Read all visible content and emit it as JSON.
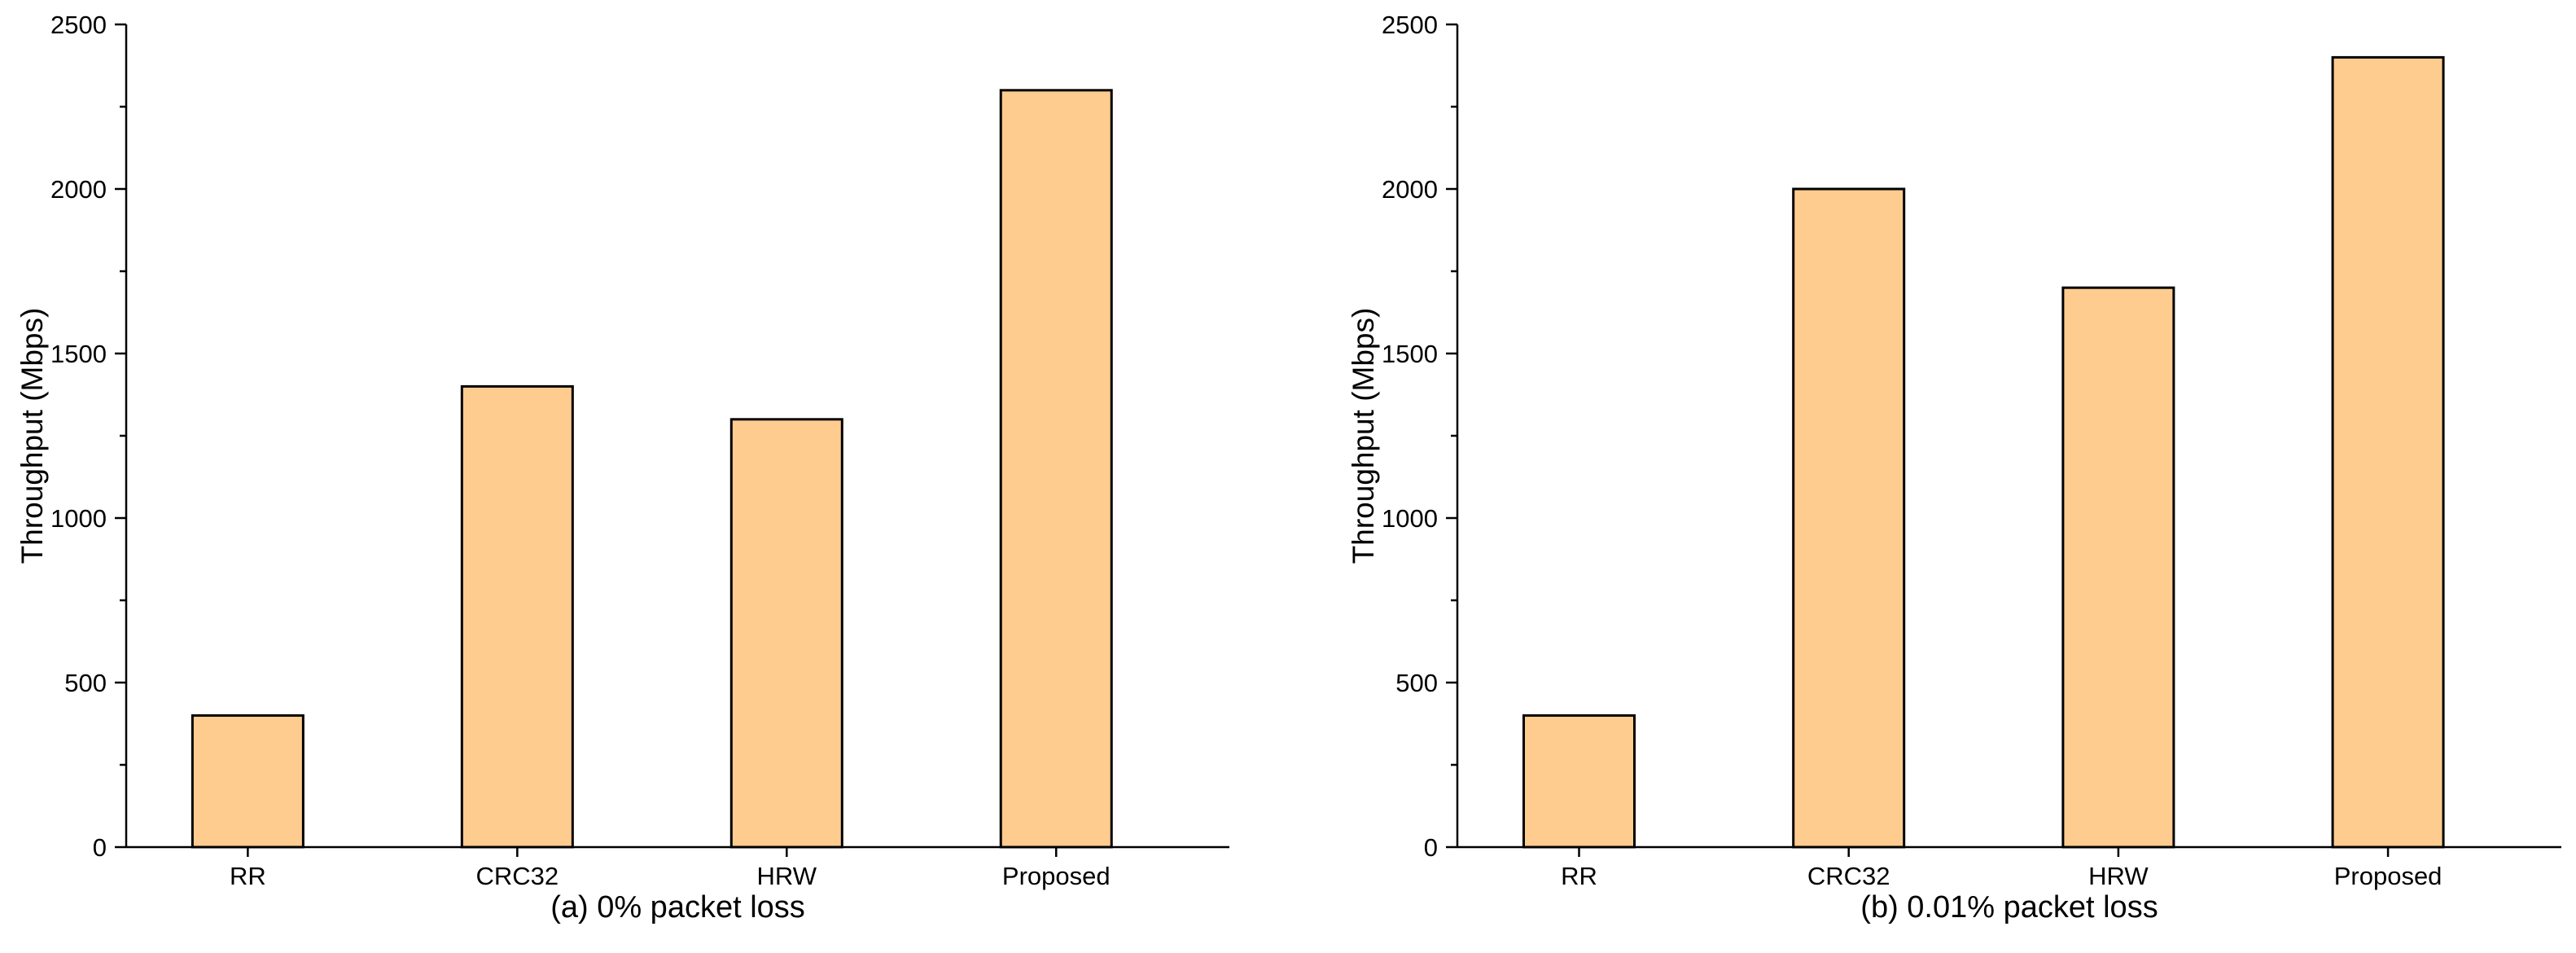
{
  "chart_data": [
    {
      "type": "bar",
      "title": "",
      "caption": "(a) 0% packet loss",
      "xlabel": "",
      "ylabel": "Throughput (Mbps)",
      "categories": [
        "RR",
        "CRC32",
        "HRW",
        "Proposed"
      ],
      "values": [
        400,
        1400,
        1300,
        2300
      ],
      "ylim": [
        0,
        2500
      ],
      "yticks": [
        0,
        500,
        1000,
        1500,
        2000,
        2500
      ],
      "grid": false,
      "legend": "none",
      "bar_color": "#FFCC8F"
    },
    {
      "type": "bar",
      "title": "",
      "caption": "(b) 0.01% packet loss",
      "xlabel": "",
      "ylabel": "Throughput (Mbps)",
      "categories": [
        "RR",
        "CRC32",
        "HRW",
        "Proposed"
      ],
      "values": [
        400,
        2000,
        1700,
        2400
      ],
      "ylim": [
        0,
        2500
      ],
      "yticks": [
        0,
        500,
        1000,
        1500,
        2000,
        2500
      ],
      "grid": false,
      "legend": "none",
      "bar_color": "#FFCC8F"
    }
  ]
}
